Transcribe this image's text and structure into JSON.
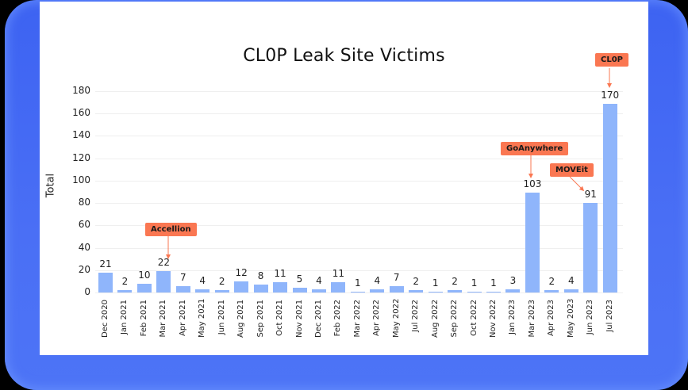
{
  "chart_data": {
    "type": "bar",
    "title": "CL0P Leak Site Victims",
    "xlabel": "",
    "ylabel": "Total",
    "ylim": [
      0,
      180
    ],
    "yticks": [
      0,
      20,
      40,
      60,
      80,
      100,
      120,
      140,
      160,
      180
    ],
    "grid": true,
    "legend": null,
    "bar_color": "#8fb5fb",
    "categories": [
      "Dec 2020",
      "Jan 2021",
      "Feb 2021",
      "Mar 2021",
      "Apr 2021",
      "May 2021",
      "Jun 2021",
      "Aug 2021",
      "Sep 2021",
      "Oct 2021",
      "Nov 2021",
      "Dec 2021",
      "Feb 2022",
      "Mar 2022",
      "Apr 2022",
      "May 2022",
      "Jul 2022",
      "Aug 2022",
      "Sep 2022",
      "Oct 2022",
      "Nov 2022",
      "Jan 2023",
      "Mar 2023",
      "Apr 2023",
      "May 2023",
      "Jun 2023",
      "Jul 2023"
    ],
    "values": [
      21,
      2,
      10,
      22,
      7,
      4,
      2,
      12,
      8,
      11,
      5,
      4,
      11,
      1,
      4,
      7,
      2,
      1,
      2,
      1,
      1,
      3,
      103,
      2,
      4,
      91,
      170
    ],
    "annotations": [
      {
        "text": "Accellion",
        "category": "Mar 2021",
        "color": "#fa7752"
      },
      {
        "text": "GoAnywhere",
        "category": "Mar 2023",
        "color": "#fa7752"
      },
      {
        "text": "MOVEit",
        "category": "Jun 2023",
        "color": "#fa7752"
      },
      {
        "text": "CL0P",
        "category": "Jul 2023",
        "color": "#fa7752"
      }
    ]
  },
  "drawn_heights": [
    18,
    2,
    8,
    19,
    6,
    3,
    2,
    10,
    7,
    9,
    4,
    3,
    9,
    1,
    3,
    6,
    2,
    1,
    2,
    1,
    1,
    3,
    89,
    2,
    3,
    80,
    169
  ]
}
